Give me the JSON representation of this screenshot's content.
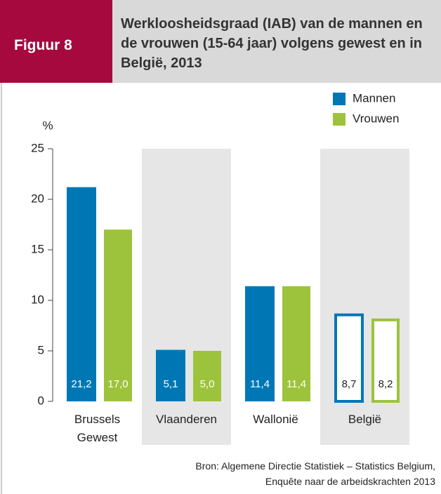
{
  "figure_label": "Figuur 8",
  "chart_data": {
    "type": "bar",
    "title": "Werkloosheidsgraad (IAB) van de mannen en de vrouwen (15-64 jaar) volgens gewest en in België, 2013",
    "y_label": "%",
    "categories": [
      "Brussels\nGewest",
      "Vlaanderen",
      "Wallonië",
      "België"
    ],
    "shaded": [
      false,
      true,
      false,
      true
    ],
    "outlined": [
      false,
      false,
      false,
      true
    ],
    "series": [
      {
        "name": "Mannen",
        "color": "#0077b5",
        "values": [
          21.2,
          5.1,
          11.4,
          8.7
        ],
        "value_labels": [
          "21,2",
          "5,1",
          "11,4",
          "8,7"
        ]
      },
      {
        "name": "Vrouwen",
        "color": "#9dc33c",
        "values": [
          17.0,
          5.0,
          11.4,
          8.2
        ],
        "value_labels": [
          "17,0",
          "5,0",
          "11,4",
          "8,2"
        ]
      }
    ],
    "ylim": [
      0,
      25
    ],
    "yticks": [
      0,
      5,
      10,
      15,
      20,
      25
    ],
    "legend": "top-right",
    "source": [
      "Bron: Algemene Directie Statistiek – Statistics Belgium,",
      "Enquête naar de arbeidskrachten 2013"
    ]
  }
}
